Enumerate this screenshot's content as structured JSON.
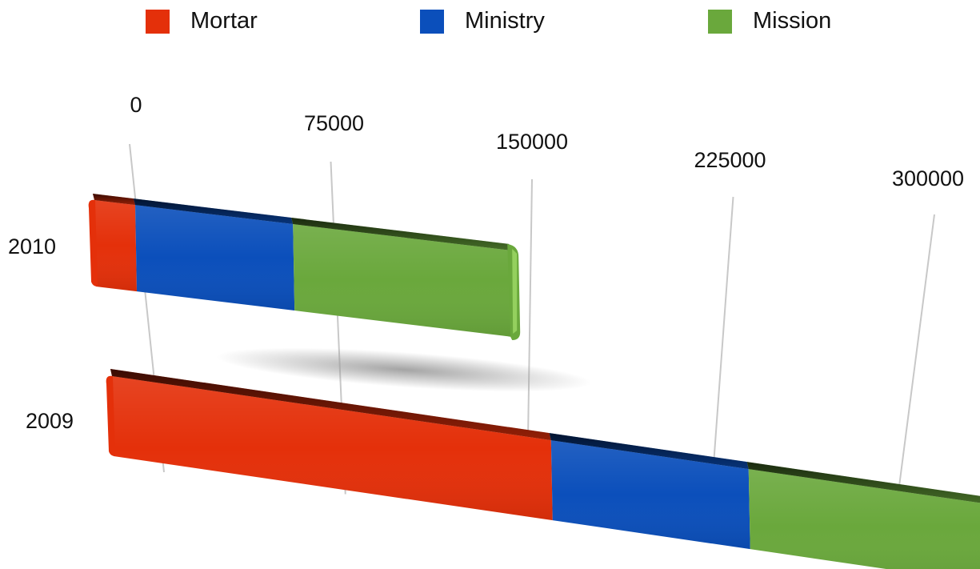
{
  "chart_data": {
    "type": "bar",
    "orientation": "horizontal",
    "stacked": true,
    "style": "3d",
    "categories": [
      "2010",
      "2009"
    ],
    "series": [
      {
        "name": "Mortar",
        "color": "#e4300a",
        "values": [
          15000,
          140000
        ]
      },
      {
        "name": "Ministry",
        "color": "#0b4fbb",
        "values": [
          58000,
          63000
        ]
      },
      {
        "name": "Mission",
        "color": "#6aa83c",
        "values": [
          80000,
          78000
        ]
      }
    ],
    "xlim": [
      0,
      300000
    ],
    "x_ticks": [
      "0",
      "75000",
      "150000",
      "225000",
      "300000"
    ],
    "grid": true,
    "legend": "top"
  }
}
